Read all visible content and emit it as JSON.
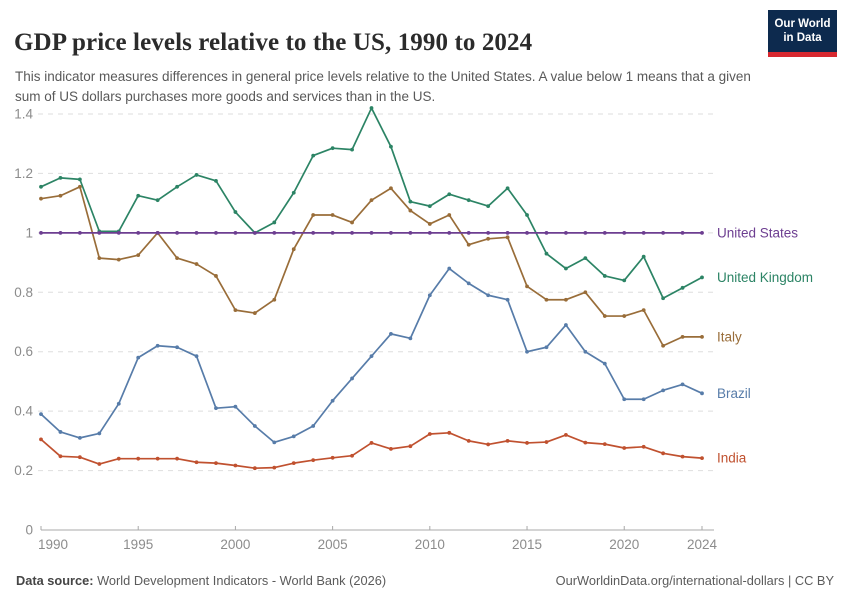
{
  "header": {
    "title": "GDP price levels relative to the US, 1990 to 2024",
    "subtitle": "This indicator measures differences in general price levels relative to the United States. A value below 1 means that a given sum of US dollars purchases more goods and services than in the US.",
    "logo": {
      "line1": "Our World",
      "line2": "in Data"
    }
  },
  "footer": {
    "source_label": "Data source:",
    "source_text": " World Development Indicators - World Bank (2026)",
    "license_text": "OurWorldinData.org/international-dollars | CC BY"
  },
  "colors": {
    "background": "#ffffff",
    "title_text": "#2b2b2b",
    "subtitle_text": "#595959",
    "axis_label": "#8c8c8c",
    "gridline": "#dedede",
    "axis_line": "#a8a8a8",
    "logo_navy": "#0d2a4e",
    "logo_red": "#d7282f",
    "united_states": "#6d3e91",
    "united_kingdom": "#2c8465",
    "italy": "#996d39",
    "brazil": "#577ca9",
    "india": "#c0512f"
  },
  "chart_data": {
    "type": "line",
    "title": "GDP price levels relative to the US, 1990 to 2024",
    "xlabel": "",
    "ylabel": "",
    "xlim": [
      1990,
      2024
    ],
    "ylim": [
      0,
      1.4
    ],
    "grid": "horizontal-dashed",
    "legend_position": "right-end-labels",
    "x_ticks": [
      1990,
      1995,
      2000,
      2005,
      2010,
      2015,
      2020,
      2024
    ],
    "y_ticks": [
      0,
      0.2,
      0.4,
      0.6,
      0.8,
      1,
      1.2,
      1.4
    ],
    "y_tick_labels": [
      "0",
      "0.2",
      "0.4",
      "0.6",
      "0.8",
      "1",
      "1.2",
      "1.4"
    ],
    "x": [
      1990,
      1991,
      1992,
      1993,
      1994,
      1995,
      1996,
      1997,
      1998,
      1999,
      2000,
      2001,
      2002,
      2003,
      2004,
      2005,
      2006,
      2007,
      2008,
      2009,
      2010,
      2011,
      2012,
      2013,
      2014,
      2015,
      2016,
      2017,
      2018,
      2019,
      2020,
      2021,
      2022,
      2023,
      2024
    ],
    "series": [
      {
        "name": "United Kingdom",
        "color": "#2c8465",
        "values": [
          1.155,
          1.185,
          1.18,
          1.005,
          1.005,
          1.125,
          1.11,
          1.155,
          1.195,
          1.175,
          1.07,
          1.0,
          1.035,
          1.135,
          1.26,
          1.285,
          1.28,
          1.42,
          1.29,
          1.105,
          1.09,
          1.13,
          1.11,
          1.09,
          1.15,
          1.06,
          0.93,
          0.88,
          0.915,
          0.855,
          0.84,
          0.92,
          0.78,
          0.815,
          0.85
        ]
      },
      {
        "name": "Italy",
        "color": "#996d39",
        "values": [
          1.115,
          1.125,
          1.155,
          0.915,
          0.91,
          0.925,
          1.0,
          0.915,
          0.895,
          0.855,
          0.74,
          0.73,
          0.775,
          0.945,
          1.06,
          1.06,
          1.035,
          1.11,
          1.15,
          1.075,
          1.03,
          1.06,
          0.96,
          0.98,
          0.985,
          0.82,
          0.775,
          0.775,
          0.8,
          0.72,
          0.72,
          0.74,
          0.62,
          0.65,
          0.65
        ]
      },
      {
        "name": "Brazil",
        "color": "#577ca9",
        "values": [
          0.39,
          0.33,
          0.31,
          0.325,
          0.425,
          0.58,
          0.62,
          0.615,
          0.585,
          0.41,
          0.415,
          0.35,
          0.295,
          0.315,
          0.35,
          0.435,
          0.51,
          0.585,
          0.66,
          0.645,
          0.79,
          0.88,
          0.83,
          0.79,
          0.775,
          0.6,
          0.615,
          0.69,
          0.6,
          0.56,
          0.44,
          0.44,
          0.47,
          0.49,
          0.46
        ]
      },
      {
        "name": "India",
        "color": "#c0512f",
        "values": [
          0.305,
          0.248,
          0.245,
          0.222,
          0.24,
          0.24,
          0.24,
          0.24,
          0.228,
          0.225,
          0.217,
          0.208,
          0.21,
          0.225,
          0.235,
          0.243,
          0.25,
          0.293,
          0.273,
          0.282,
          0.323,
          0.327,
          0.3,
          0.288,
          0.3,
          0.293,
          0.296,
          0.32,
          0.294,
          0.289,
          0.276,
          0.28,
          0.258,
          0.247,
          0.242
        ]
      },
      {
        "name": "United States",
        "color": "#6d3e91",
        "values": [
          1,
          1,
          1,
          1,
          1,
          1,
          1,
          1,
          1,
          1,
          1,
          1,
          1,
          1,
          1,
          1,
          1,
          1,
          1,
          1,
          1,
          1,
          1,
          1,
          1,
          1,
          1,
          1,
          1,
          1,
          1,
          1,
          1,
          1,
          1
        ]
      }
    ]
  }
}
